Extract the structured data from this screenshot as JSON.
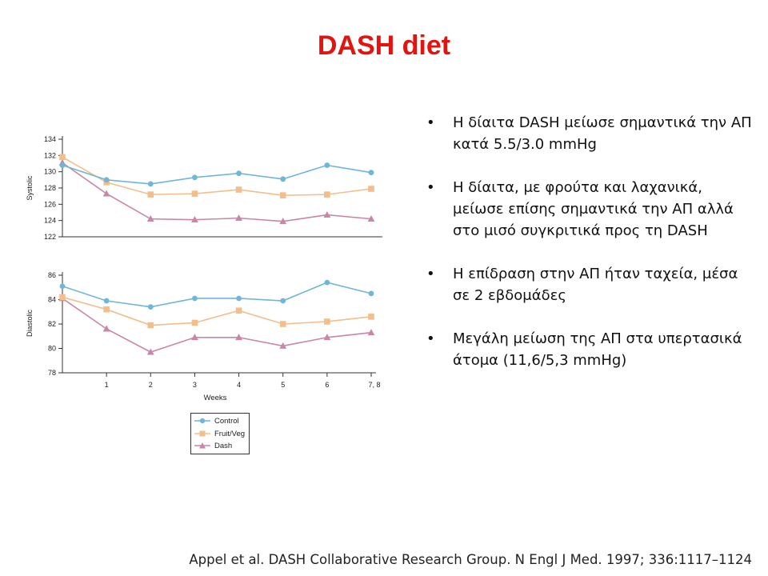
{
  "slide": {
    "title": "DASH diet",
    "citation": "Appel et al. DASH Collaborative Research Group. N Engl J Med. 1997; 336:1117–1124"
  },
  "bullets": [
    "Η δίαιτα DASH μείωσε σημαντικά την ΑΠ κατά 5.5/3.0 mmHg",
    "Η δίαιτα, με φρούτα και λαχανικά, μείωσε επίσης σημαντικά την ΑΠ αλλά στο μισό συγκριτικά προς τη DASH",
    "Η επίδραση στην ΑΠ ήταν ταχεία, μέσα σε 2 εβδομάδες",
    "Μεγάλη μείωση της ΑΠ στα υπερτασικά άτομα (11,6/5,3 mmHg)"
  ],
  "bullet_symbol": "•",
  "legend": [
    {
      "name": "Control",
      "color": "#6fb6d9",
      "marker": "circle"
    },
    {
      "name": "Fruit/Veg",
      "color": "#f2be8c",
      "marker": "square"
    },
    {
      "name": "Dash",
      "color": "#c986a6",
      "marker": "triangle"
    }
  ],
  "chart_data": [
    {
      "type": "line",
      "title": "",
      "xlabel": "",
      "ylabel": "Systolic",
      "x": [
        0,
        1,
        2,
        3,
        4,
        5,
        6,
        7
      ],
      "ylim": [
        122,
        134
      ],
      "yticks": [
        122,
        124,
        126,
        128,
        130,
        132,
        134
      ],
      "series": [
        {
          "name": "Control",
          "values": [
            130.8,
            129.0,
            128.5,
            129.3,
            129.8,
            129.1,
            130.8,
            129.9
          ]
        },
        {
          "name": "Fruit/Veg",
          "values": [
            131.8,
            128.7,
            127.2,
            127.3,
            127.8,
            127.1,
            127.2,
            127.9
          ]
        },
        {
          "name": "Dash",
          "values": [
            131.1,
            127.3,
            124.2,
            124.1,
            124.3,
            123.9,
            124.7,
            124.2
          ]
        }
      ]
    },
    {
      "type": "line",
      "title": "",
      "xlabel": "Weeks",
      "ylabel": "Diastolic",
      "x": [
        0,
        1,
        2,
        3,
        4,
        5,
        6,
        7
      ],
      "xticks": [
        "1",
        "2",
        "3",
        "4",
        "5",
        "6",
        "7, 8"
      ],
      "ylim": [
        78,
        86
      ],
      "yticks": [
        78,
        80,
        82,
        84,
        86
      ],
      "series": [
        {
          "name": "Control",
          "values": [
            85.1,
            83.9,
            83.4,
            84.1,
            84.1,
            83.9,
            85.4,
            84.5
          ]
        },
        {
          "name": "Fruit/Veg",
          "values": [
            84.2,
            83.2,
            81.9,
            82.1,
            83.1,
            82.0,
            82.2,
            82.6
          ]
        },
        {
          "name": "Dash",
          "values": [
            84.1,
            81.6,
            79.7,
            80.9,
            80.9,
            80.2,
            80.9,
            81.3
          ]
        }
      ]
    }
  ]
}
